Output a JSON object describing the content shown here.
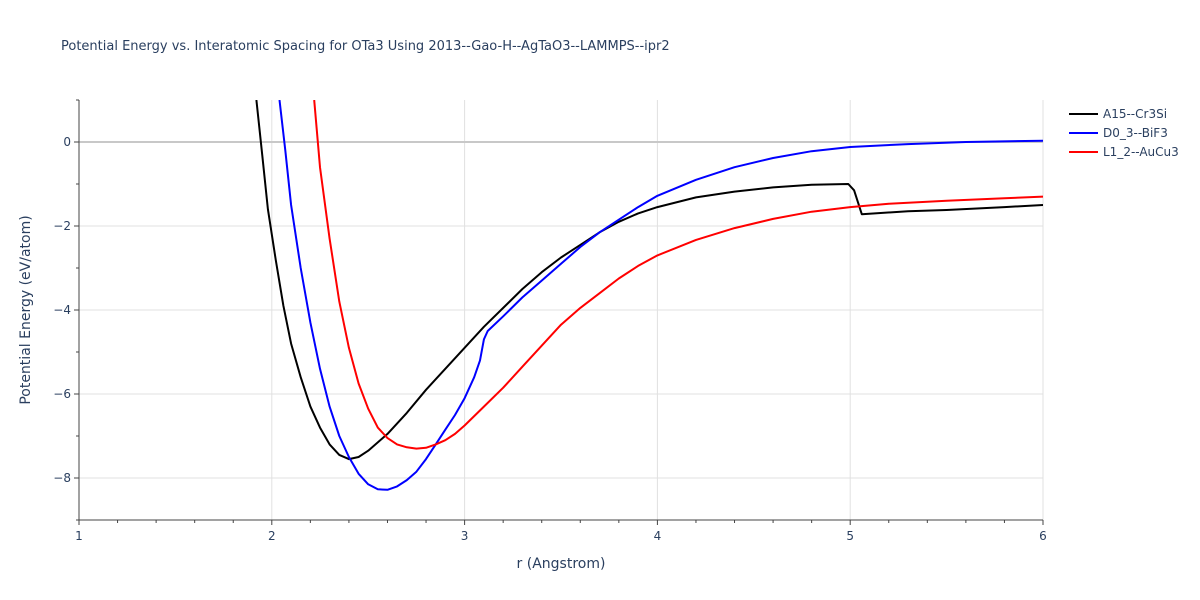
{
  "chart_data": {
    "type": "line",
    "title": "Potential Energy vs. Interatomic Spacing for OTa3 Using 2013--Gao-H--AgTaO3--LAMMPS--ipr2",
    "xlabel": "r (Angstrom)",
    "ylabel": "Potential Energy (eV/atom)",
    "xlim": [
      1,
      6
    ],
    "ylim": [
      -9,
      1
    ],
    "x_ticks": [
      1,
      2,
      3,
      4,
      5,
      6
    ],
    "y_ticks": [
      0,
      -2,
      -4,
      -6,
      -8
    ],
    "y_tick_labels": [
      "0",
      "−2",
      "−4",
      "−6",
      "−8"
    ],
    "grid": true,
    "legend_position": "top-right",
    "series": [
      {
        "name": "A15--Cr3Si",
        "color": "#000000",
        "points": [
          [
            1.92,
            1.0
          ],
          [
            1.95,
            -0.3
          ],
          [
            1.98,
            -1.6
          ],
          [
            2.02,
            -2.8
          ],
          [
            2.06,
            -3.9
          ],
          [
            2.1,
            -4.8
          ],
          [
            2.15,
            -5.6
          ],
          [
            2.2,
            -6.3
          ],
          [
            2.25,
            -6.8
          ],
          [
            2.3,
            -7.2
          ],
          [
            2.35,
            -7.45
          ],
          [
            2.4,
            -7.55
          ],
          [
            2.45,
            -7.5
          ],
          [
            2.5,
            -7.35
          ],
          [
            2.6,
            -6.95
          ],
          [
            2.7,
            -6.45
          ],
          [
            2.8,
            -5.9
          ],
          [
            2.9,
            -5.4
          ],
          [
            3.0,
            -4.9
          ],
          [
            3.1,
            -4.4
          ],
          [
            3.2,
            -3.95
          ],
          [
            3.3,
            -3.5
          ],
          [
            3.4,
            -3.1
          ],
          [
            3.5,
            -2.75
          ],
          [
            3.6,
            -2.45
          ],
          [
            3.7,
            -2.15
          ],
          [
            3.8,
            -1.9
          ],
          [
            3.9,
            -1.7
          ],
          [
            4.0,
            -1.55
          ],
          [
            4.2,
            -1.32
          ],
          [
            4.4,
            -1.18
          ],
          [
            4.6,
            -1.08
          ],
          [
            4.8,
            -1.02
          ],
          [
            4.99,
            -1.0
          ],
          [
            5.02,
            -1.15
          ],
          [
            5.06,
            -1.72
          ],
          [
            5.3,
            -1.65
          ],
          [
            5.5,
            -1.62
          ],
          [
            5.8,
            -1.55
          ],
          [
            6.0,
            -1.5
          ]
        ]
      },
      {
        "name": "D0_3--BiF3",
        "color": "#0000ff",
        "points": [
          [
            2.04,
            1.0
          ],
          [
            2.07,
            -0.2
          ],
          [
            2.1,
            -1.5
          ],
          [
            2.15,
            -3.0
          ],
          [
            2.2,
            -4.3
          ],
          [
            2.25,
            -5.4
          ],
          [
            2.3,
            -6.3
          ],
          [
            2.35,
            -7.0
          ],
          [
            2.4,
            -7.5
          ],
          [
            2.45,
            -7.9
          ],
          [
            2.5,
            -8.15
          ],
          [
            2.55,
            -8.27
          ],
          [
            2.6,
            -8.28
          ],
          [
            2.65,
            -8.2
          ],
          [
            2.7,
            -8.05
          ],
          [
            2.75,
            -7.85
          ],
          [
            2.8,
            -7.55
          ],
          [
            2.85,
            -7.2
          ],
          [
            2.9,
            -6.85
          ],
          [
            2.95,
            -6.5
          ],
          [
            3.0,
            -6.1
          ],
          [
            3.05,
            -5.6
          ],
          [
            3.08,
            -5.2
          ],
          [
            3.1,
            -4.7
          ],
          [
            3.12,
            -4.5
          ],
          [
            3.2,
            -4.15
          ],
          [
            3.3,
            -3.7
          ],
          [
            3.4,
            -3.3
          ],
          [
            3.5,
            -2.9
          ],
          [
            3.6,
            -2.5
          ],
          [
            3.7,
            -2.15
          ],
          [
            3.8,
            -1.85
          ],
          [
            3.9,
            -1.55
          ],
          [
            4.0,
            -1.28
          ],
          [
            4.2,
            -0.9
          ],
          [
            4.4,
            -0.6
          ],
          [
            4.6,
            -0.38
          ],
          [
            4.8,
            -0.22
          ],
          [
            5.0,
            -0.12
          ],
          [
            5.3,
            -0.05
          ],
          [
            5.6,
            0.0
          ],
          [
            6.0,
            0.03
          ]
        ]
      },
      {
        "name": "L1_2--AuCu3",
        "color": "#ff0000",
        "points": [
          [
            2.22,
            1.0
          ],
          [
            2.25,
            -0.6
          ],
          [
            2.3,
            -2.3
          ],
          [
            2.35,
            -3.8
          ],
          [
            2.4,
            -4.9
          ],
          [
            2.45,
            -5.75
          ],
          [
            2.5,
            -6.35
          ],
          [
            2.55,
            -6.8
          ],
          [
            2.6,
            -7.05
          ],
          [
            2.65,
            -7.2
          ],
          [
            2.7,
            -7.27
          ],
          [
            2.75,
            -7.3
          ],
          [
            2.8,
            -7.28
          ],
          [
            2.85,
            -7.2
          ],
          [
            2.9,
            -7.1
          ],
          [
            2.95,
            -6.95
          ],
          [
            3.0,
            -6.75
          ],
          [
            3.1,
            -6.3
          ],
          [
            3.2,
            -5.85
          ],
          [
            3.3,
            -5.35
          ],
          [
            3.4,
            -4.85
          ],
          [
            3.5,
            -4.35
          ],
          [
            3.6,
            -3.95
          ],
          [
            3.7,
            -3.6
          ],
          [
            3.8,
            -3.25
          ],
          [
            3.9,
            -2.95
          ],
          [
            4.0,
            -2.7
          ],
          [
            4.2,
            -2.33
          ],
          [
            4.4,
            -2.05
          ],
          [
            4.6,
            -1.83
          ],
          [
            4.8,
            -1.66
          ],
          [
            5.0,
            -1.55
          ],
          [
            5.2,
            -1.47
          ],
          [
            5.5,
            -1.4
          ],
          [
            5.8,
            -1.34
          ],
          [
            6.0,
            -1.3
          ]
        ]
      }
    ]
  }
}
